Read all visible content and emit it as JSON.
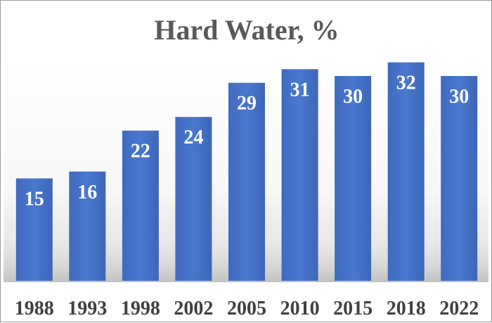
{
  "chart_data": {
    "type": "bar",
    "title": "Hard Water, %",
    "xlabel": "",
    "ylabel": "",
    "categories": [
      "1988",
      "1993",
      "1998",
      "2002",
      "2005",
      "2010",
      "2015",
      "2018",
      "2022"
    ],
    "values": [
      15,
      16,
      22,
      24,
      29,
      31,
      30,
      32,
      30
    ],
    "data_labels": [
      "15",
      "16",
      "22",
      "24",
      "29",
      "31",
      "30",
      "32",
      "30"
    ],
    "ylim": [
      0,
      35
    ],
    "grid": false,
    "legend": "none",
    "bar_color": "#4472c4"
  }
}
